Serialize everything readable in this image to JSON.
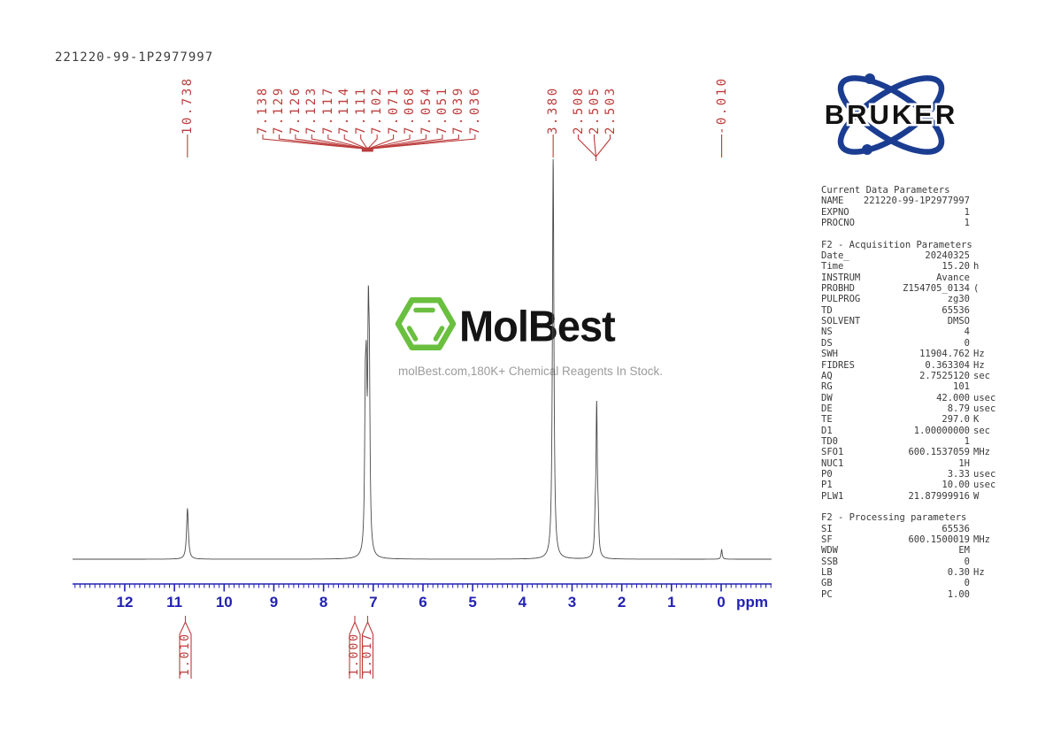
{
  "page": {
    "title": "221220-99-1P2977997"
  },
  "colors": {
    "peak_label_red": "#bc3c3c",
    "axis_blue": "#2222b2",
    "spectrum_line": "#4a4a4a",
    "param_text": "#3a3a3a",
    "watermark_green": "#6abf3f",
    "bruker_blue": "#1b3d91"
  },
  "watermark": {
    "brand": "MolBest",
    "tagline": "molBest.com,180K+ Chemical Reagents In Stock.",
    "hexagon_icon": "benzene-hexagon-icon"
  },
  "bruker_logo": {
    "text": "BRUKER"
  },
  "chart_data": {
    "type": "line",
    "title": "221220-99-1P2977997",
    "xlabel": "ppm",
    "x_axis": {
      "ticks": [
        12,
        11,
        10,
        9,
        8,
        7,
        6,
        5,
        4,
        3,
        2,
        1,
        0
      ],
      "unit_label": "ppm",
      "range": [
        13.05,
        -1.02
      ],
      "minor_tick_interval": 0.1,
      "grid": false
    },
    "peaks": [
      {
        "ppm": 10.738,
        "rel_height": 0.126,
        "width_ppm": 0.022
      },
      {
        "ppm": 7.16,
        "rel_height": 0.327,
        "width_ppm": 0.016
      },
      {
        "ppm": 7.139,
        "rel_height": 0.336,
        "width_ppm": 0.016
      },
      {
        "ppm": 7.099,
        "rel_height": 0.487,
        "width_ppm": 0.016
      },
      {
        "ppm": 7.078,
        "rel_height": 0.354,
        "width_ppm": 0.016
      },
      {
        "ppm": 3.38,
        "rel_height": 1.0,
        "width_ppm": 0.018
      },
      {
        "ppm": 2.535,
        "rel_height": 0.066,
        "width_ppm": 0.014
      },
      {
        "ppm": 2.505,
        "rel_height": 0.372,
        "width_ppm": 0.016
      },
      {
        "ppm": 2.475,
        "rel_height": 0.066,
        "width_ppm": 0.014
      },
      {
        "ppm": -0.01,
        "rel_height": 0.024,
        "width_ppm": 0.014
      }
    ],
    "peak_annotations": {
      "singles": [
        {
          "label": "10.738",
          "ppm": 10.738
        },
        {
          "label": "3.380",
          "ppm": 3.38
        },
        {
          "label": "-0.010",
          "ppm": -0.01
        }
      ],
      "clusters": [
        {
          "name": "aromatic",
          "labels": [
            "7.138",
            "7.129",
            "7.126",
            "7.123",
            "7.117",
            "7.114",
            "7.111",
            "7.102",
            "7.071",
            "7.068",
            "7.054",
            "7.051",
            "7.039",
            "7.036"
          ]
        },
        {
          "name": "dmso",
          "labels": [
            "2.508",
            "2.505",
            "2.503"
          ]
        }
      ]
    },
    "integrals": [
      {
        "value": "1.010",
        "region_ppm": 10.74
      },
      {
        "value": "1.000",
        "region_ppm": 7.37
      },
      {
        "value": "1.017",
        "region_ppm": 7.12
      }
    ]
  },
  "params": {
    "sections": [
      {
        "title": "Current Data Parameters",
        "rows": [
          [
            "NAME",
            "221220-99-1P2977997",
            ""
          ],
          [
            "EXPNO",
            "1",
            ""
          ],
          [
            "PROCNO",
            "1",
            ""
          ]
        ]
      },
      {
        "title": "F2 - Acquisition Parameters",
        "rows": [
          [
            "Date_",
            "20240325",
            ""
          ],
          [
            "Time",
            "15.20",
            "h"
          ],
          [
            "INSTRUM",
            "Avance",
            ""
          ],
          [
            "PROBHD",
            "Z154705_0134",
            "("
          ],
          [
            "PULPROG",
            "zg30",
            ""
          ],
          [
            "TD",
            "65536",
            ""
          ],
          [
            "SOLVENT",
            "DMSO",
            ""
          ],
          [
            "NS",
            "4",
            ""
          ],
          [
            "DS",
            "0",
            ""
          ],
          [
            "SWH",
            "11904.762",
            "Hz"
          ],
          [
            "FIDRES",
            "0.363304",
            "Hz"
          ],
          [
            "AQ",
            "2.7525120",
            "sec"
          ],
          [
            "RG",
            "101",
            ""
          ],
          [
            "DW",
            "42.000",
            "usec"
          ],
          [
            "DE",
            "8.79",
            "usec"
          ],
          [
            "TE",
            "297.0",
            "K"
          ],
          [
            "D1",
            "1.00000000",
            "sec"
          ],
          [
            "TD0",
            "1",
            ""
          ],
          [
            "SFO1",
            "600.1537059",
            "MHz"
          ],
          [
            "NUC1",
            "1H",
            ""
          ],
          [
            "P0",
            "3.33",
            "usec"
          ],
          [
            "P1",
            "10.00",
            "usec"
          ],
          [
            "PLW1",
            "21.87999916",
            "W"
          ]
        ]
      },
      {
        "title": "F2 - Processing parameters",
        "rows": [
          [
            "SI",
            "65536",
            ""
          ],
          [
            "SF",
            "600.1500019",
            "MHz"
          ],
          [
            "WDW",
            "EM",
            ""
          ],
          [
            "SSB",
            "0",
            ""
          ],
          [
            "LB",
            "0.30",
            "Hz"
          ],
          [
            "GB",
            "0",
            ""
          ],
          [
            "PC",
            "1.00",
            ""
          ]
        ]
      }
    ]
  }
}
